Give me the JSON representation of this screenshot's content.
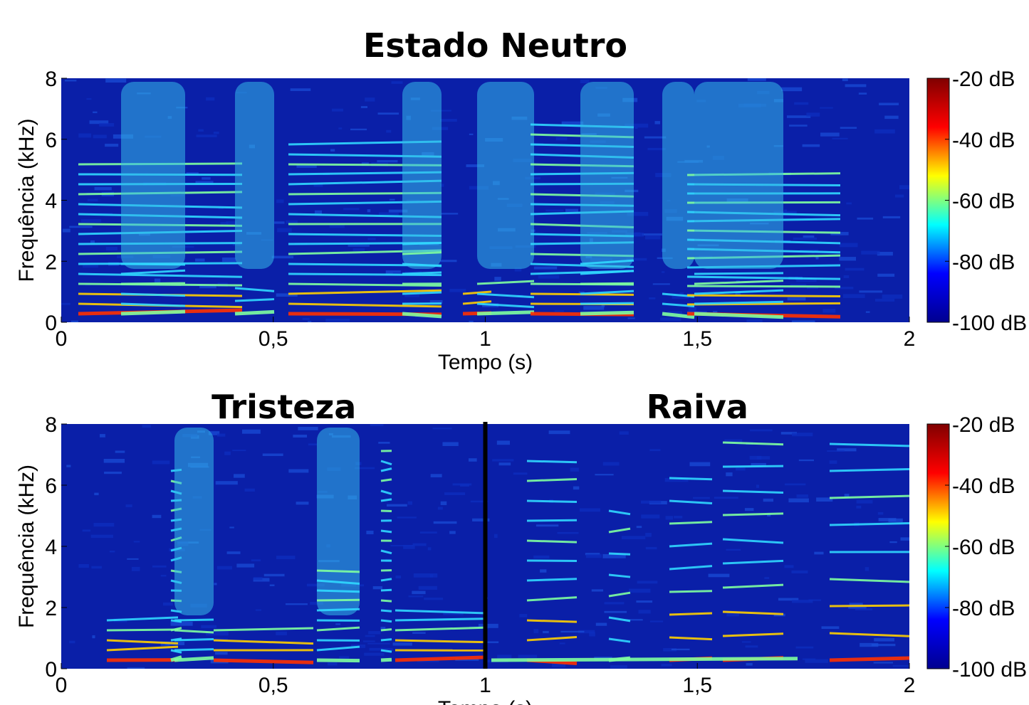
{
  "chart_data": [
    {
      "type": "spectrogram",
      "title": "Estado Neutro",
      "xlabel": "Tempo (s)",
      "ylabel": "Frequência (kHz)",
      "xlim": [
        0,
        2
      ],
      "xticks": [
        0,
        {
          "value": 0.5,
          "label": "0,5"
        },
        1,
        {
          "value": 1.5,
          "label": "1,5"
        },
        2
      ],
      "ylim": [
        0,
        8
      ],
      "yticks": [
        0,
        2,
        4,
        6,
        8
      ],
      "clim": [
        -100,
        -20
      ],
      "cticks": [
        {
          "value": -20,
          "label": "-20 dB"
        },
        {
          "value": -40,
          "label": "-40 dB"
        },
        {
          "value": -60,
          "label": "-60 dB"
        },
        {
          "value": -80,
          "label": "-80 dB"
        },
        {
          "value": -100,
          "label": "-100 dB"
        }
      ],
      "colormap": [
        "#00008f",
        "#0000ff",
        "#00ffff",
        "#ffff00",
        "#ff0000",
        "#800000"
      ]
    },
    {
      "type": "spectrogram",
      "panel_titles": [
        "Tristeza",
        "Raiva"
      ],
      "xlabel": "Tempo (s)",
      "ylabel": "Frequência (kHz)",
      "xlim": [
        0,
        2
      ],
      "xticks": [
        0,
        {
          "value": 0.5,
          "label": "0,5"
        },
        1,
        {
          "value": 1.5,
          "label": "1,5"
        },
        2
      ],
      "ylim": [
        0,
        8
      ],
      "yticks": [
        0,
        2,
        4,
        6,
        8
      ],
      "clim": [
        -100,
        -20
      ],
      "cticks": [
        {
          "value": -20,
          "label": "-20 dB"
        },
        {
          "value": -40,
          "label": "-40 dB"
        },
        {
          "value": -60,
          "label": "-60 dB"
        },
        {
          "value": -80,
          "label": "-80 dB"
        },
        {
          "value": -100,
          "label": "-100 dB"
        }
      ],
      "colormap": [
        "#00008f",
        "#0000ff",
        "#00ffff",
        "#ffff00",
        "#ff0000",
        "#800000"
      ]
    }
  ]
}
